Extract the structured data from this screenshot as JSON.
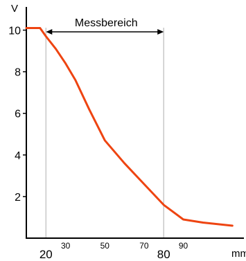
{
  "chart_data": {
    "type": "line",
    "title": "",
    "ylabel": "V",
    "xlabel": "mm",
    "xlim": [
      10,
      120
    ],
    "ylim": [
      0,
      10.5
    ],
    "y_ticks": [
      {
        "value": 10,
        "label": "10"
      },
      {
        "value": 8,
        "label": "8"
      },
      {
        "value": 6,
        "label": "6"
      },
      {
        "value": 4,
        "label": "4"
      },
      {
        "value": 2,
        "label": "2"
      }
    ],
    "x_ticks": [
      {
        "value": 20,
        "label": "20",
        "size": "large"
      },
      {
        "value": 30,
        "label": "30",
        "size": "small"
      },
      {
        "value": 50,
        "label": "50",
        "size": "small"
      },
      {
        "value": 70,
        "label": "70",
        "size": "small"
      },
      {
        "value": 80,
        "label": "80",
        "size": "large"
      },
      {
        "value": 90,
        "label": "90",
        "size": "small"
      }
    ],
    "measuring_range": {
      "label": "Messbereich",
      "from": 20,
      "to": 80
    },
    "series": [
      {
        "color": "#ee4411",
        "x": [
          10,
          14,
          17,
          20,
          25,
          30,
          35,
          42,
          50,
          60,
          70,
          80,
          90,
          100,
          110,
          115
        ],
        "y": [
          10.1,
          10.1,
          10.1,
          9.7,
          9.1,
          8.4,
          7.6,
          6.2,
          4.7,
          3.6,
          2.6,
          1.6,
          0.9,
          0.75,
          0.65,
          0.6
        ]
      }
    ],
    "grid": false
  }
}
